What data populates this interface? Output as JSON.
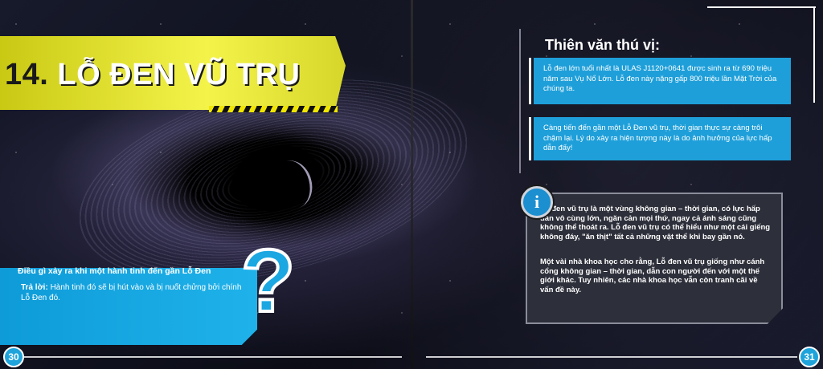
{
  "left_page": {
    "chapter_number": "14.",
    "chapter_title": "LỖ ĐEN VŨ TRỤ",
    "question": {
      "title": "Điều gì xảy ra khi một hành tinh đến gần Lỗ Đen",
      "answer_label": "Trả lời:",
      "answer_text": "Hành tinh đó sẽ bị hút vào và bị nuốt chửng bởi chính Lỗ Đen đó.",
      "symbol": "?"
    },
    "page_number": "30"
  },
  "right_page": {
    "heading": "Thiên văn thú vị:",
    "facts": [
      "Lỗ đen lớn tuổi nhất là ULAS J1120+0641 được sinh ra từ 690 triệu năm sau Vụ Nổ Lớn. Lỗ đen này nặng gấp 800 triệu lần Mặt Trời của chúng ta.",
      "Càng tiến đến gần một Lỗ Đen vũ trụ, thời gian thực sự càng trôi chậm lại. Lý do xảy ra hiện tượng này là do ảnh hưởng của lực hấp dẫn đấy!"
    ],
    "info": {
      "icon": "i",
      "paragraphs": [
        "Lỗ đen vũ trụ là một vùng không gian – thời gian, có lực hấp dẫn vô cùng lớn, ngăn cản mọi thứ, ngay cả ánh sáng cũng không thể thoát ra. Lỗ đen vũ trụ có thể hiểu như một cái giếng không đáy, \"ăn thịt\" tất cả những vật thể khi bay gần nó.",
        "Một vài nhà khoa học cho rằng, Lỗ đen vũ trụ giống như cánh cổng không gian – thời gian, dẫn con người đến với một thế giới khác. Tuy nhiên, các nhà khoa học vẫn còn tranh cãi về vấn đề này."
      ]
    },
    "page_number": "31"
  },
  "colors": {
    "accent_blue": "#1e9fd9",
    "title_yellow": "#f4f34a",
    "panel_gray": "#2d2f3a"
  }
}
